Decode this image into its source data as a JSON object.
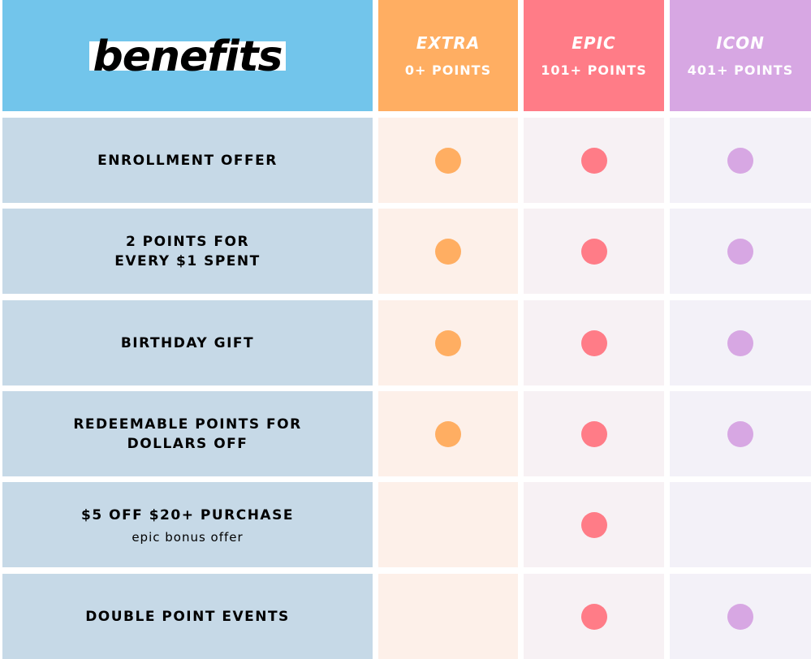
{
  "title": "benefits",
  "tiers": [
    {
      "name": "EXTRA",
      "points": "0+ POINTS",
      "color": "#ffae62",
      "bg": "#fdf0e9"
    },
    {
      "name": "EPIC",
      "points": "101+ POINTS",
      "color": "#ff7c87",
      "bg": "#f7f1f4"
    },
    {
      "name": "ICON",
      "points": "401+ POINTS",
      "color": "#d7a7e3",
      "bg": "#f3f1f8"
    }
  ],
  "rows": [
    {
      "label": "ENROLLMENT OFFER",
      "sub": "",
      "included": [
        true,
        true,
        true
      ]
    },
    {
      "label": "2 POINTS FOR\nEVERY $1 SPENT",
      "sub": "",
      "included": [
        true,
        true,
        true
      ]
    },
    {
      "label": "BIRTHDAY GIFT",
      "sub": "",
      "included": [
        true,
        true,
        true
      ]
    },
    {
      "label": "REDEEMABLE POINTS FOR\nDOLLARS OFF",
      "sub": "",
      "included": [
        true,
        true,
        true
      ]
    },
    {
      "label": "$5 OFF $20+ PURCHASE",
      "sub": "epic bonus offer",
      "included": [
        false,
        true,
        false
      ]
    },
    {
      "label": "DOUBLE POINT EVENTS",
      "sub": "",
      "included": [
        false,
        true,
        true
      ]
    }
  ]
}
